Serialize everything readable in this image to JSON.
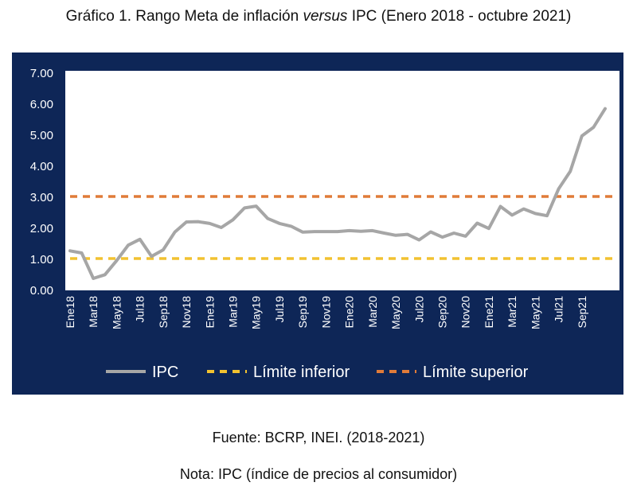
{
  "title": {
    "prefix": "Gráfico 1. Rango Meta de inflación ",
    "italic": "versus",
    "suffix": " IPC (Enero 2018 - octubre 2021)"
  },
  "source": "Fuente: BCRP, INEI. (2018-2021)",
  "note": "Nota: IPC (índice de precios al consumidor)",
  "colors": {
    "panel": "#0e2657",
    "ipc": "#a6a6a6",
    "lower": "#f2c230",
    "upper": "#e07b39",
    "plot_bg": "#ffffff",
    "text_light": "#ffffff"
  },
  "chart_data": {
    "type": "line",
    "title": "",
    "xlabel": "",
    "ylabel": "",
    "ylim": [
      0,
      7
    ],
    "yticks": [
      "0.00",
      "1.00",
      "2.00",
      "3.00",
      "4.00",
      "5.00",
      "6.00",
      "7.00"
    ],
    "x_tick_labels": [
      "Ene18",
      "Mar18",
      "May18",
      "Jul18",
      "Sep18",
      "Nov18",
      "Ene19",
      "Mar19",
      "May19",
      "Jul19",
      "Sep19",
      "Nov19",
      "Ene20",
      "Mar20",
      "May20",
      "Jul20",
      "Sep20",
      "Nov20",
      "Ene21",
      "Mar21",
      "May21",
      "Jul21",
      "Sep21"
    ],
    "legend_position": "bottom",
    "grid": false,
    "series": [
      {
        "name": "IPC",
        "style": "solid",
        "values": [
          1.25,
          1.18,
          0.36,
          0.48,
          0.93,
          1.43,
          1.62,
          1.07,
          1.28,
          1.85,
          2.18,
          2.19,
          2.13,
          2.0,
          2.25,
          2.63,
          2.69,
          2.29,
          2.13,
          2.04,
          1.85,
          1.87,
          1.87,
          1.87,
          1.9,
          1.88,
          1.9,
          1.82,
          1.75,
          1.78,
          1.6,
          1.86,
          1.69,
          1.82,
          1.72,
          2.14,
          1.97,
          2.68,
          2.4,
          2.6,
          2.45,
          2.38,
          3.25,
          3.81,
          4.95,
          5.23,
          5.83
        ]
      },
      {
        "name": "Límite inferior",
        "style": "dashed",
        "values": [
          1,
          1
        ]
      },
      {
        "name": "Límite superior",
        "style": "dashed",
        "values": [
          3,
          3
        ]
      }
    ]
  }
}
